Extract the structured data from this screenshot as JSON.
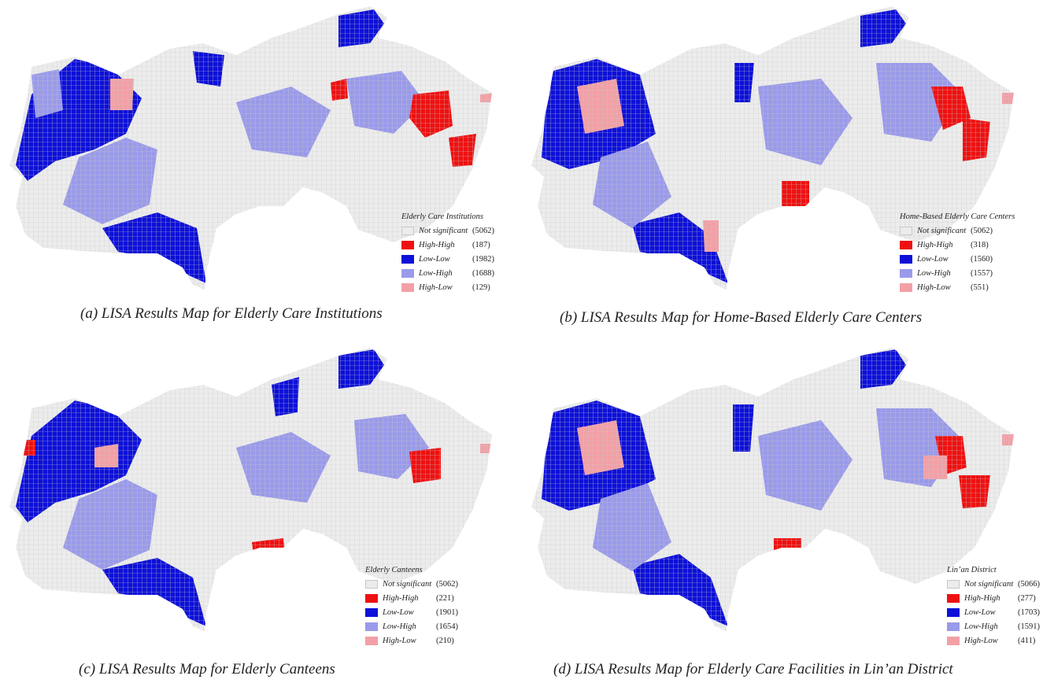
{
  "colors": {
    "not_significant": "#ececec",
    "high_high": "#ee1111",
    "low_low": "#0d10d8",
    "low_high": "#9a9aea",
    "high_low": "#f2a0a6",
    "grid": "#c9c9c9"
  },
  "panels": [
    {
      "caption": "(a) LISA Results Map for Elderly Care Institutions",
      "legend": {
        "title": "Elderly Care Institutions",
        "entries": [
          {
            "label": "Not significant",
            "count": "(5062)"
          },
          {
            "label": "High-High",
            "count": "(187)"
          },
          {
            "label": "Low-Low",
            "count": "(1982)"
          },
          {
            "label": "Low-High",
            "count": "(1688)"
          },
          {
            "label": "High-Low",
            "count": "(129)"
          }
        ]
      }
    },
    {
      "caption": "(b) LISA Results Map for Home-Based Elderly Care Centers",
      "legend": {
        "title": "Home-Based Elderly Care Centers",
        "entries": [
          {
            "label": "Not significant",
            "count": "(5062)"
          },
          {
            "label": "High-High",
            "count": "(318)"
          },
          {
            "label": "Low-Low",
            "count": "(1560)"
          },
          {
            "label": "Low-High",
            "count": "(1557)"
          },
          {
            "label": "High-Low",
            "count": "(551)"
          }
        ]
      }
    },
    {
      "caption": "(c) LISA Results Map for Elderly Canteens",
      "legend": {
        "title": "Elderly Canteens",
        "entries": [
          {
            "label": "Not significant",
            "count": "(5062)"
          },
          {
            "label": "High-High",
            "count": "(221)"
          },
          {
            "label": "Low-Low",
            "count": "(1901)"
          },
          {
            "label": "Low-High",
            "count": "(1654)"
          },
          {
            "label": "High-Low",
            "count": "(210)"
          }
        ]
      }
    },
    {
      "caption": "(d) LISA Results Map for Elderly Care Facilities in Lin’an District",
      "legend": {
        "title": "Lin’an District",
        "entries": [
          {
            "label": "Not significant",
            "count": "(5066)"
          },
          {
            "label": "High-High",
            "count": "(277)"
          },
          {
            "label": "Low-Low",
            "count": "(1703)"
          },
          {
            "label": "Low-High",
            "count": "(1591)"
          },
          {
            "label": "High-Low",
            "count": "(411)"
          }
        ]
      }
    }
  ]
}
